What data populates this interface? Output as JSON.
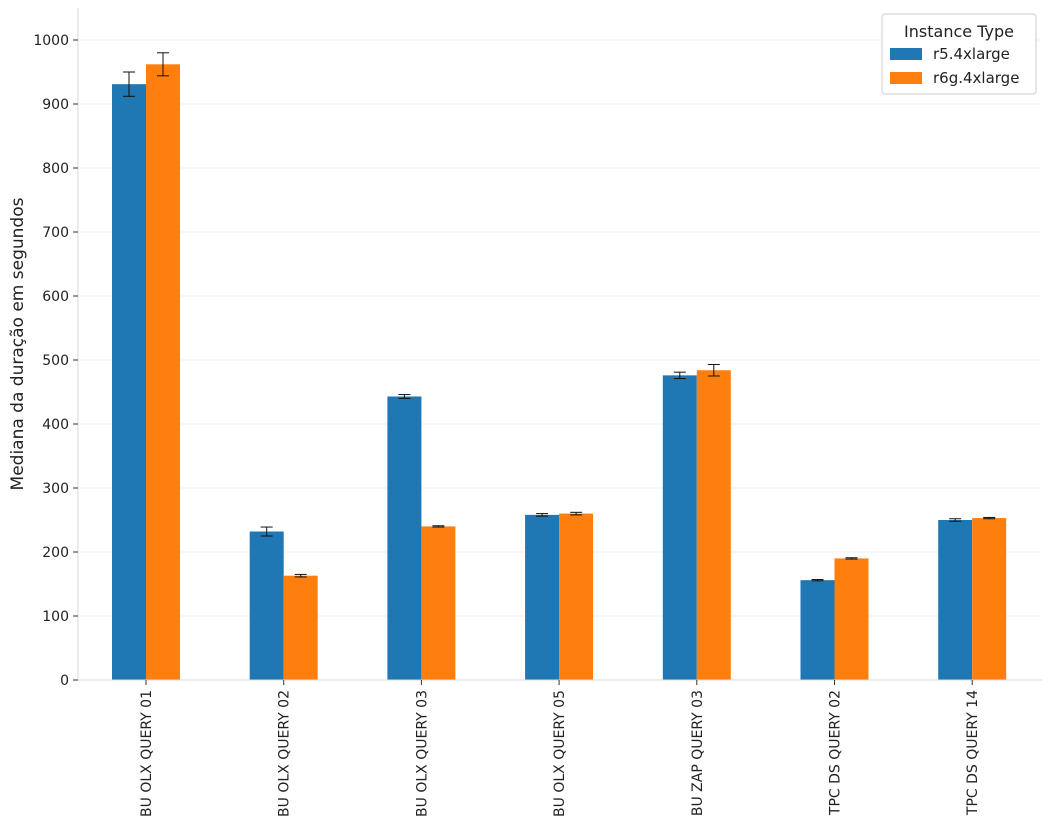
{
  "chart_data": {
    "type": "bar",
    "title": "",
    "xlabel": "",
    "ylabel": "Mediana da duração em segundos",
    "ylim": [
      0,
      1050
    ],
    "yticks": [
      0,
      100,
      200,
      300,
      400,
      500,
      600,
      700,
      800,
      900,
      1000
    ],
    "grid": "horizontal",
    "legend_title": "Instance Type",
    "legend_position": "top-right",
    "categories": [
      "BU OLX QUERY 01",
      "BU OLX QUERY 02",
      "BU OLX QUERY 03",
      "BU OLX QUERY 05",
      "BU ZAP QUERY 03",
      "TPC DS QUERY 02",
      "TPC DS QUERY 14"
    ],
    "series": [
      {
        "name": "r5.4xlarge",
        "color": "#1f77b4",
        "values": [
          931,
          232,
          443,
          258,
          476,
          156,
          250
        ],
        "error": [
          19,
          7,
          3,
          2,
          5,
          1,
          2
        ]
      },
      {
        "name": "r6g.4xlarge",
        "color": "#ff7f0e",
        "values": [
          962,
          163,
          240,
          260,
          484,
          190,
          253
        ],
        "error": [
          18,
          2,
          1,
          2,
          9,
          1,
          1
        ]
      }
    ]
  }
}
